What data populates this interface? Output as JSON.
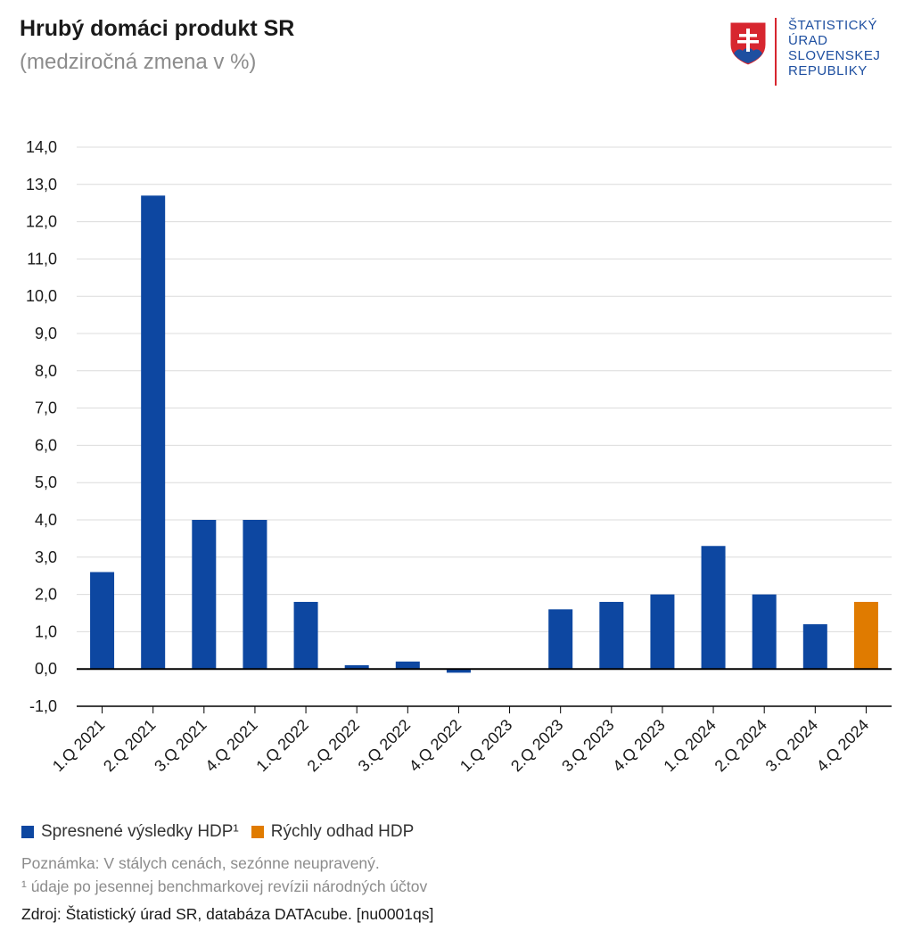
{
  "header": {
    "title": "Hrubý domáci produkt SR",
    "subtitle": "(medziročná zmena v %)"
  },
  "logo": {
    "lines": [
      "ŠTATISTICKÝ",
      "ÚRAD",
      "SLOVENSKEJ",
      "REPUBLIKY"
    ]
  },
  "colors": {
    "series_refined": "#0d47a1",
    "series_flash": "#e07b00",
    "grid": "#dcdcdc",
    "axis": "#000000",
    "logo_blue": "#1e4fa0",
    "logo_red": "#d7262f"
  },
  "chart_data": {
    "type": "bar",
    "title": "Hrubý domáci produkt SR",
    "subtitle": "(medziročná zmena v %)",
    "categories": [
      "1.Q 2021",
      "2.Q 2021",
      "3.Q 2021",
      "4.Q 2021",
      "1.Q 2022",
      "2.Q 2022",
      "3.Q 2022",
      "4.Q 2022",
      "1.Q 2023",
      "2.Q 2023",
      "3.Q 2023",
      "4.Q 2023",
      "1.Q 2024",
      "2.Q 2024",
      "3.Q 2024",
      "4.Q 2024"
    ],
    "series": [
      {
        "name": "Spresnené výsledky HDP¹",
        "color": "#0d47a1",
        "values": [
          2.6,
          12.7,
          4.0,
          4.0,
          1.8,
          0.1,
          0.2,
          -0.1,
          0.0,
          1.6,
          1.8,
          2.0,
          3.3,
          2.0,
          1.2,
          null
        ]
      },
      {
        "name": "Rýchly odhad HDP",
        "color": "#e07b00",
        "values": [
          null,
          null,
          null,
          null,
          null,
          null,
          null,
          null,
          null,
          null,
          null,
          null,
          null,
          null,
          null,
          1.8
        ]
      }
    ],
    "yticks": [
      "14,0",
      "13,0",
      "12,0",
      "11,0",
      "10,0",
      "9,0",
      "8,0",
      "7,0",
      "6,0",
      "5,0",
      "4,0",
      "3,0",
      "2,0",
      "1,0",
      "0,0",
      "-1,0"
    ],
    "ylim": [
      -1,
      14
    ],
    "xlabel": "",
    "ylabel": "",
    "grid": true,
    "legend_position": "bottom-left"
  },
  "legend": {
    "items": [
      {
        "label": "Spresnené výsledky HDP¹",
        "color": "#0d47a1"
      },
      {
        "label": "Rýchly odhad HDP",
        "color": "#e07b00"
      }
    ]
  },
  "footer": {
    "note": "Poznámka: V stálych cenách, sezónne neupravený.",
    "footnote": "¹ údaje po jesennej benchmarkovej revízii národných účtov",
    "source": "Zdroj: Štatistický úrad SR, databáza DATAcube. [nu0001qs]"
  }
}
